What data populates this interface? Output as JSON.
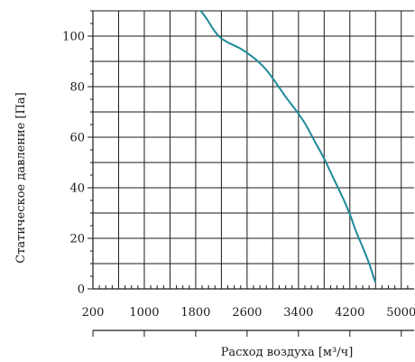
{
  "chart_data": {
    "type": "line",
    "xlabel": "Расход воздуха [м³/ч]",
    "ylabel": "Статическое давление [Па]",
    "xlim": [
      200,
      5200
    ],
    "ylim": [
      0,
      110
    ],
    "x_ticks": [
      200,
      1000,
      1800,
      2600,
      3400,
      4200,
      5000
    ],
    "y_ticks": [
      0,
      20,
      40,
      60,
      80,
      100
    ],
    "grid": true,
    "colors": {
      "curve": "#1e8a9a",
      "axis": "#1a1a1a"
    },
    "series": [
      {
        "x": [
          1880,
          1980,
          2080,
          2180,
          2300,
          2500,
          2700,
          2850,
          2950,
          3050,
          3200,
          3350,
          3500,
          3650,
          3800,
          3950,
          4100,
          4200,
          4300,
          4400,
          4500,
          4590
        ],
        "y": [
          110,
          106.5,
          102.5,
          99.5,
          97.5,
          95,
          91.5,
          88,
          85,
          81.5,
          76,
          71,
          65.5,
          58.5,
          51.5,
          43.5,
          35.5,
          29.5,
          22.5,
          16.5,
          10,
          3
        ]
      }
    ]
  }
}
